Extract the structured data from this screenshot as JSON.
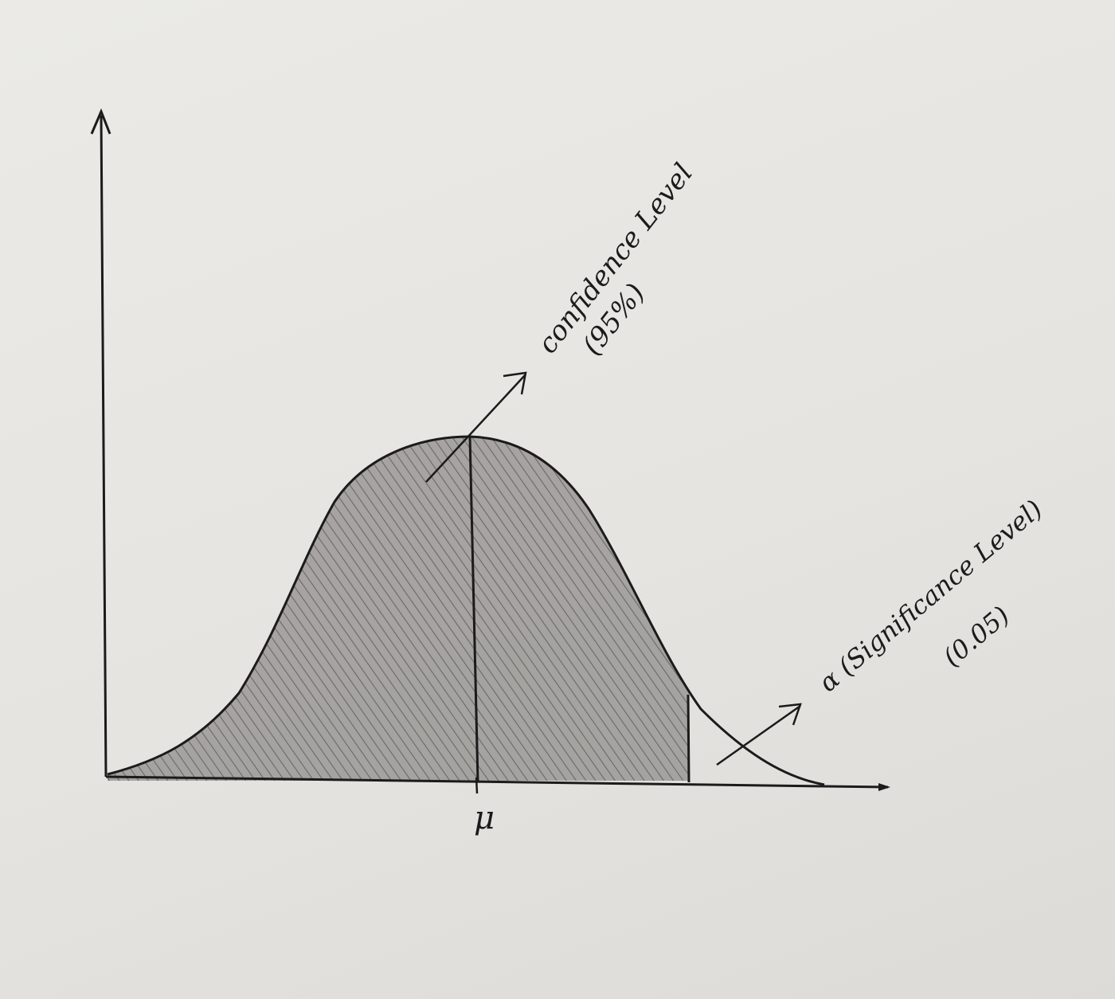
{
  "labels": {
    "mu": "μ",
    "confidence_title": "confidence Level",
    "confidence_value": "(95%)",
    "alpha_title": "α (Significance Level)",
    "alpha_value": "(0.05)"
  },
  "colors": {
    "paper": "#e9e7e3",
    "ink": "#1b1b1b",
    "shade": "#6e6e6e"
  }
}
